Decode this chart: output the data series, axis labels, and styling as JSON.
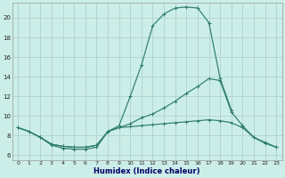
{
  "bg_color": "#cceee8",
  "grid_color": "#aacccc",
  "line_color": "#2e7d6e",
  "xlabel": "Humidex (Indice chaleur)",
  "ylim": [
    5.5,
    21.5
  ],
  "xlim": [
    -0.5,
    23.5
  ],
  "yticks": [
    6,
    8,
    10,
    12,
    14,
    16,
    18,
    20
  ],
  "xticks": [
    0,
    1,
    2,
    3,
    4,
    5,
    6,
    7,
    8,
    9,
    10,
    11,
    12,
    13,
    14,
    15,
    16,
    17,
    18,
    19,
    20,
    21,
    22,
    23
  ],
  "line1_x": [
    0,
    1,
    2,
    3,
    4,
    5,
    6,
    7,
    8,
    9,
    10,
    11,
    12,
    13,
    14,
    15,
    16,
    17,
    18,
    19
  ],
  "line1_y": [
    8.8,
    8.4,
    7.8,
    7.0,
    6.7,
    6.6,
    6.6,
    6.8,
    8.4,
    9.0,
    12.0,
    15.2,
    19.2,
    20.4,
    21.0,
    21.1,
    21.0,
    19.5,
    13.8,
    10.6
  ],
  "line2_x": [
    0,
    1,
    2,
    3,
    4,
    5,
    6,
    7,
    8,
    9,
    10,
    11,
    12,
    13,
    14,
    15,
    16,
    17,
    18,
    19,
    20,
    21,
    22,
    23
  ],
  "line2_y": [
    8.8,
    8.4,
    7.8,
    7.1,
    6.9,
    6.8,
    6.8,
    7.0,
    8.4,
    8.8,
    9.2,
    9.8,
    10.2,
    10.8,
    11.5,
    12.3,
    13.0,
    13.8,
    13.6,
    10.4,
    9.0,
    7.8,
    7.2,
    6.8
  ],
  "line3_x": [
    0,
    1,
    2,
    3,
    4,
    5,
    6,
    7,
    8,
    9,
    10,
    11,
    12,
    13,
    14,
    15,
    16,
    17,
    18,
    19,
    20,
    21,
    22,
    23
  ],
  "line3_y": [
    8.8,
    8.4,
    7.8,
    7.1,
    6.9,
    6.8,
    6.8,
    7.0,
    8.4,
    8.8,
    8.9,
    9.0,
    9.1,
    9.2,
    9.3,
    9.4,
    9.5,
    9.6,
    9.5,
    9.3,
    8.8,
    7.8,
    7.3,
    6.8
  ]
}
